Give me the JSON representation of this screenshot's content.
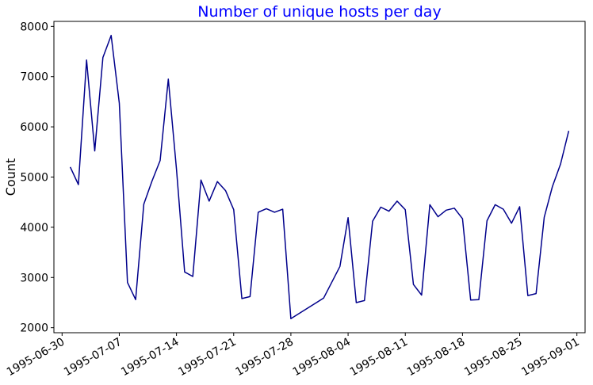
{
  "chart_data": {
    "type": "line",
    "title": "Number of unique hosts per day",
    "xlabel": "",
    "ylabel": "Count",
    "ylim": [
      1900,
      8100
    ],
    "xlim": [
      "1995-06-29",
      "1995-09-02"
    ],
    "grid": false,
    "line_color": "#00008b",
    "title_color": "#0000ff",
    "y_ticks": [
      2000,
      3000,
      4000,
      5000,
      6000,
      7000,
      8000
    ],
    "x_ticks": [
      "1995-06-30",
      "1995-07-07",
      "1995-07-14",
      "1995-07-21",
      "1995-07-28",
      "1995-08-04",
      "1995-08-11",
      "1995-08-18",
      "1995-08-25",
      "1995-09-01"
    ],
    "series": [
      {
        "x": [
          "1995-07-01",
          "1995-07-02",
          "1995-07-03",
          "1995-07-04",
          "1995-07-05",
          "1995-07-06",
          "1995-07-07",
          "1995-07-08",
          "1995-07-09",
          "1995-07-10",
          "1995-07-11",
          "1995-07-12",
          "1995-07-13",
          "1995-07-14",
          "1995-07-15",
          "1995-07-16",
          "1995-07-17",
          "1995-07-18",
          "1995-07-19",
          "1995-07-20",
          "1995-07-21",
          "1995-07-22",
          "1995-07-23",
          "1995-07-24",
          "1995-07-25",
          "1995-07-26",
          "1995-07-27",
          "1995-07-28",
          "1995-08-01",
          "1995-08-03",
          "1995-08-04",
          "1995-08-05",
          "1995-08-06",
          "1995-08-07",
          "1995-08-08",
          "1995-08-09",
          "1995-08-10",
          "1995-08-11",
          "1995-08-12",
          "1995-08-13",
          "1995-08-14",
          "1995-08-15",
          "1995-08-16",
          "1995-08-17",
          "1995-08-18",
          "1995-08-19",
          "1995-08-20",
          "1995-08-21",
          "1995-08-22",
          "1995-08-23",
          "1995-08-24",
          "1995-08-25",
          "1995-08-26",
          "1995-08-27",
          "1995-08-28",
          "1995-08-29",
          "1995-08-30",
          "1995-08-31"
        ],
        "values": [
          5200,
          4850,
          7330,
          5520,
          7380,
          7820,
          6470,
          2900,
          2560,
          4460,
          4920,
          5330,
          6950,
          5160,
          3110,
          3020,
          4940,
          4520,
          4910,
          4730,
          4350,
          2580,
          2620,
          4300,
          4370,
          4300,
          4360,
          2180,
          2590,
          3220,
          4190,
          2500,
          2540,
          4120,
          4400,
          4320,
          4520,
          4350,
          2860,
          2650,
          4450,
          4210,
          4340,
          4380,
          4170,
          2550,
          2560,
          4130,
          4450,
          4360,
          4080,
          4410,
          2640,
          2680,
          4200,
          4810,
          5260,
          5920
        ]
      }
    ]
  }
}
